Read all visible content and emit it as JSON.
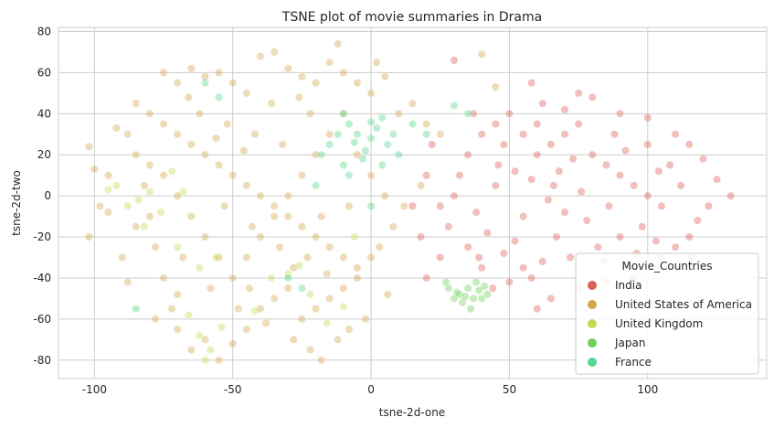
{
  "chart_data": {
    "type": "scatter",
    "title": "TSNE plot of movie summaries in Drama",
    "xlabel": "tsne-2d-one",
    "ylabel": "tsne-2d-two",
    "xlim": [
      -113,
      143
    ],
    "ylim": [
      -89,
      82
    ],
    "x_ticks": [
      -100,
      -50,
      0,
      50,
      100
    ],
    "y_ticks": [
      -80,
      -60,
      -40,
      -20,
      0,
      20,
      40,
      60,
      80
    ],
    "grid": true,
    "legend_title": "Movie_Countries",
    "legend_position": "lower-right",
    "marker_alpha": 0.4,
    "series": [
      {
        "name": "India",
        "color": "#db5f57",
        "points": [
          [
            30,
            66
          ],
          [
            58,
            55
          ],
          [
            62,
            45
          ],
          [
            70,
            42
          ],
          [
            75,
            50
          ],
          [
            80,
            48
          ],
          [
            90,
            40
          ],
          [
            100,
            38
          ],
          [
            110,
            30
          ],
          [
            115,
            25
          ],
          [
            120,
            18
          ],
          [
            125,
            8
          ],
          [
            130,
            0
          ],
          [
            122,
            -5
          ],
          [
            118,
            -12
          ],
          [
            115,
            -20
          ],
          [
            110,
            -25
          ],
          [
            105,
            -30
          ],
          [
            95,
            -40
          ],
          [
            85,
            -42
          ],
          [
            75,
            -45
          ],
          [
            65,
            -50
          ],
          [
            60,
            -55
          ],
          [
            50,
            -42
          ],
          [
            40,
            -35
          ],
          [
            35,
            -25
          ],
          [
            25,
            -30
          ],
          [
            20,
            -40
          ],
          [
            28,
            -15
          ],
          [
            30,
            0
          ],
          [
            32,
            10
          ],
          [
            35,
            20
          ],
          [
            40,
            30
          ],
          [
            45,
            35
          ],
          [
            50,
            40
          ],
          [
            55,
            30
          ],
          [
            60,
            20
          ],
          [
            65,
            25
          ],
          [
            70,
            30
          ],
          [
            75,
            35
          ],
          [
            80,
            20
          ],
          [
            85,
            15
          ],
          [
            90,
            10
          ],
          [
            95,
            5
          ],
          [
            100,
            0
          ],
          [
            105,
            -5
          ],
          [
            98,
            -15
          ],
          [
            90,
            -20
          ],
          [
            82,
            -25
          ],
          [
            72,
            -30
          ],
          [
            62,
            -32
          ],
          [
            55,
            -35
          ],
          [
            48,
            -28
          ],
          [
            42,
            -18
          ],
          [
            38,
            -8
          ],
          [
            45,
            5
          ],
          [
            52,
            12
          ],
          [
            58,
            8
          ],
          [
            64,
            -2
          ],
          [
            70,
            -8
          ],
          [
            78,
            -12
          ],
          [
            86,
            -5
          ],
          [
            92,
            22
          ],
          [
            100,
            25
          ],
          [
            108,
            15
          ],
          [
            112,
            5
          ],
          [
            116,
            -30
          ],
          [
            20,
            10
          ],
          [
            25,
            -5
          ],
          [
            22,
            25
          ],
          [
            18,
            -20
          ],
          [
            55,
            -10
          ],
          [
            68,
            12
          ],
          [
            76,
            2
          ],
          [
            84,
            -32
          ],
          [
            93,
            -35
          ],
          [
            103,
            -22
          ],
          [
            60,
            35
          ],
          [
            48,
            25
          ],
          [
            44,
            -45
          ],
          [
            37,
            40
          ],
          [
            15,
            -5
          ],
          [
            67,
            -20
          ],
          [
            73,
            18
          ],
          [
            88,
            30
          ],
          [
            52,
            -22
          ],
          [
            58,
            -40
          ],
          [
            96,
            -28
          ],
          [
            104,
            12
          ],
          [
            66,
            5
          ],
          [
            46,
            15
          ],
          [
            39,
            -30
          ]
        ]
      },
      {
        "name": "United States of America",
        "color": "#d4a64c",
        "points": [
          [
            -102,
            24
          ],
          [
            -100,
            13
          ],
          [
            -102,
            -20
          ],
          [
            -98,
            -5
          ],
          [
            -95,
            10
          ],
          [
            -92,
            33
          ],
          [
            -88,
            30
          ],
          [
            -85,
            20
          ],
          [
            -82,
            5
          ],
          [
            -80,
            -10
          ],
          [
            -78,
            -25
          ],
          [
            -75,
            -40
          ],
          [
            -72,
            -55
          ],
          [
            -70,
            -65
          ],
          [
            -65,
            -75
          ],
          [
            -60,
            -70
          ],
          [
            -55,
            -80
          ],
          [
            -50,
            -72
          ],
          [
            -45,
            -65
          ],
          [
            -40,
            -55
          ],
          [
            -35,
            -50
          ],
          [
            -30,
            -45
          ],
          [
            -25,
            -60
          ],
          [
            -20,
            -55
          ],
          [
            -15,
            -50
          ],
          [
            -10,
            -45
          ],
          [
            -5,
            -40
          ],
          [
            0,
            -30
          ],
          [
            -2,
            -60
          ],
          [
            -8,
            -65
          ],
          [
            -12,
            -70
          ],
          [
            -18,
            -80
          ],
          [
            -22,
            -75
          ],
          [
            -28,
            -70
          ],
          [
            -75,
            60
          ],
          [
            -70,
            55
          ],
          [
            -65,
            62
          ],
          [
            -60,
            58
          ],
          [
            -55,
            60
          ],
          [
            -50,
            55
          ],
          [
            -45,
            50
          ],
          [
            -40,
            68
          ],
          [
            -35,
            70
          ],
          [
            -30,
            62
          ],
          [
            -25,
            58
          ],
          [
            -20,
            55
          ],
          [
            -15,
            65
          ],
          [
            -12,
            74
          ],
          [
            -10,
            60
          ],
          [
            -5,
            55
          ],
          [
            0,
            50
          ],
          [
            2,
            65
          ],
          [
            5,
            58
          ],
          [
            10,
            40
          ],
          [
            15,
            45
          ],
          [
            20,
            35
          ],
          [
            25,
            30
          ],
          [
            -85,
            45
          ],
          [
            -80,
            40
          ],
          [
            -75,
            35
          ],
          [
            -70,
            30
          ],
          [
            -65,
            25
          ],
          [
            -60,
            20
          ],
          [
            -55,
            15
          ],
          [
            -50,
            10
          ],
          [
            -45,
            5
          ],
          [
            -40,
            0
          ],
          [
            -35,
            -5
          ],
          [
            -30,
            -10
          ],
          [
            -25,
            -15
          ],
          [
            -20,
            -20
          ],
          [
            -15,
            -25
          ],
          [
            -10,
            -30
          ],
          [
            -5,
            -35
          ],
          [
            -90,
            -30
          ],
          [
            -85,
            -15
          ],
          [
            -80,
            15
          ],
          [
            -75,
            10
          ],
          [
            -70,
            0
          ],
          [
            -65,
            -10
          ],
          [
            -60,
            -20
          ],
          [
            -55,
            -30
          ],
          [
            -50,
            -40
          ],
          [
            -45,
            -30
          ],
          [
            -40,
            -20
          ],
          [
            -35,
            -10
          ],
          [
            -30,
            0
          ],
          [
            -25,
            10
          ],
          [
            -20,
            20
          ],
          [
            -15,
            30
          ],
          [
            -10,
            40
          ],
          [
            -5,
            20
          ],
          [
            0,
            10
          ],
          [
            5,
            0
          ],
          [
            8,
            -15
          ],
          [
            3,
            -25
          ],
          [
            -62,
            40
          ],
          [
            -52,
            35
          ],
          [
            -42,
            30
          ],
          [
            -32,
            25
          ],
          [
            -22,
            40
          ],
          [
            -58,
            -45
          ],
          [
            -48,
            -55
          ],
          [
            -38,
            -62
          ],
          [
            -28,
            -35
          ],
          [
            -18,
            -10
          ],
          [
            -8,
            -5
          ],
          [
            -95,
            -8
          ],
          [
            -68,
            -30
          ],
          [
            -46,
            22
          ],
          [
            -36,
            45
          ],
          [
            -26,
            48
          ],
          [
            -88,
            -42
          ],
          [
            -78,
            -60
          ],
          [
            -53,
            -5
          ],
          [
            -43,
            -15
          ],
          [
            -33,
            -25
          ],
          [
            -23,
            -30
          ],
          [
            12,
            -5
          ],
          [
            18,
            5
          ],
          [
            -66,
            48
          ],
          [
            -56,
            28
          ],
          [
            -44,
            -45
          ],
          [
            -16,
            -38
          ],
          [
            6,
            -48
          ],
          [
            -70,
            -48
          ],
          [
            40,
            69
          ],
          [
            45,
            53
          ]
        ]
      },
      {
        "name": "United Kingdom",
        "color": "#c0dd55",
        "points": [
          [
            -95,
            3
          ],
          [
            -92,
            5
          ],
          [
            -88,
            -5
          ],
          [
            -84,
            -2
          ],
          [
            -80,
            2
          ],
          [
            -82,
            -15
          ],
          [
            -70,
            -25
          ],
          [
            -62,
            -35
          ],
          [
            -56,
            -30
          ],
          [
            -66,
            -58
          ],
          [
            -62,
            -68
          ],
          [
            -60,
            -80
          ],
          [
            -58,
            -75
          ],
          [
            -54,
            -64
          ],
          [
            -42,
            -56
          ],
          [
            -36,
            -40
          ],
          [
            -30,
            -38
          ],
          [
            -26,
            -34
          ],
          [
            -22,
            -48
          ],
          [
            -10,
            -54
          ],
          [
            -16,
            -62
          ],
          [
            -6,
            -20
          ],
          [
            -72,
            12
          ],
          [
            -76,
            -8
          ],
          [
            -68,
            2
          ]
        ]
      },
      {
        "name": "Japan",
        "color": "#6fcf59",
        "points": [
          [
            28,
            -45
          ],
          [
            30,
            -50
          ],
          [
            32,
            -48
          ],
          [
            35,
            -45
          ],
          [
            38,
            -42
          ],
          [
            40,
            -50
          ],
          [
            42,
            -48
          ],
          [
            33,
            -52
          ],
          [
            36,
            -55
          ],
          [
            39,
            -46
          ],
          [
            31,
            -47
          ],
          [
            37,
            -50
          ],
          [
            41,
            -44
          ],
          [
            34,
            -49
          ],
          [
            27,
            -42
          ]
        ]
      },
      {
        "name": "France",
        "color": "#57d68f",
        "points": [
          [
            -10,
            40
          ],
          [
            -8,
            35
          ],
          [
            -5,
            30
          ],
          [
            0,
            28
          ],
          [
            2,
            33
          ],
          [
            4,
            38
          ],
          [
            6,
            25
          ],
          [
            -2,
            22
          ],
          [
            -12,
            30
          ],
          [
            -15,
            25
          ],
          [
            -18,
            20
          ],
          [
            8,
            30
          ],
          [
            -6,
            26
          ],
          [
            0,
            36
          ],
          [
            -3,
            18
          ],
          [
            -10,
            15
          ],
          [
            10,
            20
          ],
          [
            15,
            35
          ],
          [
            20,
            30
          ],
          [
            30,
            44
          ],
          [
            35,
            40
          ],
          [
            -30,
            -40
          ],
          [
            -25,
            -45
          ],
          [
            -85,
            -55
          ],
          [
            -60,
            55
          ],
          [
            -55,
            48
          ],
          [
            0,
            -5
          ],
          [
            -20,
            5
          ],
          [
            -8,
            10
          ],
          [
            4,
            15
          ]
        ]
      }
    ]
  }
}
